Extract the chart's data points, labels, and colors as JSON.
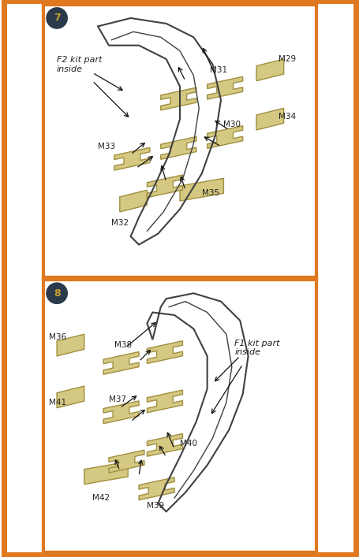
{
  "bg_color": "#ffffff",
  "border_color": "#e07820",
  "mask_fill": "#d4c882",
  "mask_edge": "#a09040",
  "fuselage_edge": "#404040",
  "fuselage_lw": 1.5,
  "label_color": "#222222",
  "badge_bg": "#2a3a4a",
  "badge_text": "#c8a030",
  "arrow_color": "#111111",
  "label_italic": true,
  "panel1_step": "7",
  "panel2_step": "8",
  "panel1_label": "F2 kit part\ninside",
  "panel2_label": "F1 kit part\ninside",
  "label_fontsize": 8.0,
  "part_fontsize": 7.5
}
